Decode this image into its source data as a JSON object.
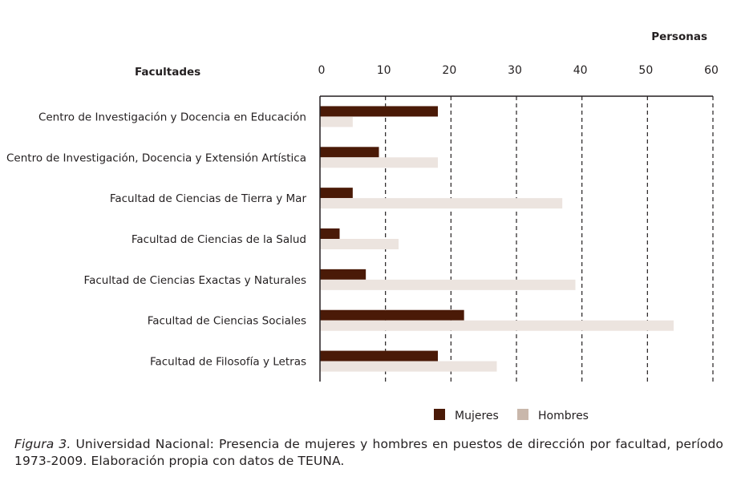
{
  "chart_data": {
    "type": "bar",
    "orientation": "horizontal",
    "xlabel": "Personas",
    "ylabel": "Facultades",
    "xlim": [
      0,
      60
    ],
    "xticks": [
      0,
      10,
      20,
      30,
      40,
      50,
      60
    ],
    "grid": "vertical dashed",
    "legend_position": "bottom",
    "categories": [
      "Centro de Investigación y Docencia en Educación",
      "Centro de Investigación, Docencia y Extensión Artística",
      "Facultad de Ciencias de Tierra y Mar",
      "Facultad de Ciencias de la Salud",
      "Facultad de Ciencias Exactas y Naturales",
      "Facultad de Ciencias Sociales",
      "Facultad de Filosofía y Letras"
    ],
    "series": [
      {
        "name": "Mujeres",
        "color": "#4a1a07",
        "values": [
          18,
          9,
          5,
          3,
          7,
          22,
          18
        ]
      },
      {
        "name": "Hombres",
        "color": "#ece4df",
        "legend_color": "#c9b7ab",
        "values": [
          5,
          18,
          37,
          12,
          39,
          54,
          27
        ]
      }
    ]
  },
  "caption": {
    "figure_label": "Figura 3.",
    "text": " Universidad Nacional: Presencia de mujeres y hombres en puestos de dirección por facultad, período 1973-2009. Elaboración propia con datos de TEUNA."
  }
}
